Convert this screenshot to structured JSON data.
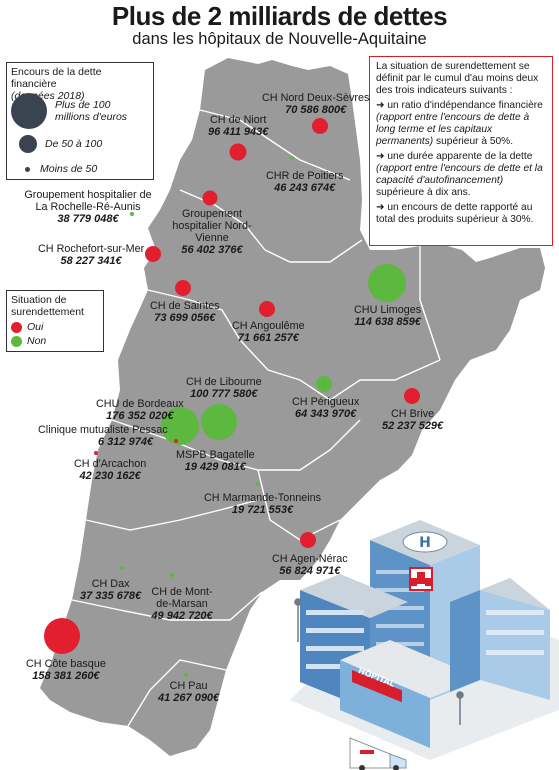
{
  "title": "Plus de 2 milliards de dettes",
  "subtitle": "dans les hôpitaux de Nouvelle-Aquitaine",
  "legend": {
    "title": "Encours de la dette financière",
    "subtitle": "(données 2018)",
    "sizes": [
      {
        "label": "Plus de 100 millions d'euros"
      },
      {
        "label": "De 50 à 100"
      },
      {
        "label": "Moins de 50"
      }
    ]
  },
  "status_legend": {
    "title": "Situation de surendettement",
    "yes": "Oui",
    "no": "Non",
    "yes_color": "#e21f2f",
    "no_color": "#5cb83f"
  },
  "info": {
    "intro": "La situation de surendettement se définit par le cumul d'au moins deux des trois indicateurs suivants :",
    "criteria": [
      {
        "lead": "un ratio d'indépendance financière",
        "detail": "(rapport entre l'encours de dette à long terme et les capitaux permanents)",
        "tail": "supérieur à 50%."
      },
      {
        "lead": "une durée apparente de la dette",
        "detail": "(rapport entre l'encours de dette et la capacité d'autofinancement)",
        "tail": "supérieure à dix ans."
      },
      {
        "lead": "un encours de dette rapporté au total des produits supérieur à 30%.",
        "detail": "",
        "tail": ""
      }
    ]
  },
  "hospitals": [
    {
      "name": "CH Nord Deux-Sèvres",
      "value": "70 586 800€",
      "status": "oui"
    },
    {
      "name": "CH de Niort",
      "value": "96 411 943€",
      "status": "oui"
    },
    {
      "name": "CHR de Poitiers",
      "value": "46 243 674€",
      "status": "oui"
    },
    {
      "name": "Groupement hospitalier de La Rochelle-Ré-Aunis",
      "value": "38 779 048€",
      "status": "non"
    },
    {
      "name": "Groupement hospitalier Nord-Vienne",
      "value": "56 402 376€",
      "status": "oui"
    },
    {
      "name": "CH Rochefort-sur-Mer",
      "value": "58 227 341€",
      "status": "oui"
    },
    {
      "name": "CHU Limoges",
      "value": "114 638 859€",
      "status": "non"
    },
    {
      "name": "CH de Saintes",
      "value": "73 699 056€",
      "status": "oui"
    },
    {
      "name": "CH Angoulême",
      "value": "71 661 257€",
      "status": "oui"
    },
    {
      "name": "CH de Libourne",
      "value": "100 777 580€",
      "status": "non"
    },
    {
      "name": "CH Périgueux",
      "value": "64 343 970€",
      "status": "non"
    },
    {
      "name": "CH Brive",
      "value": "52 237 529€",
      "status": "oui"
    },
    {
      "name": "CHU de Bordeaux",
      "value": "176 352 020€",
      "status": "non"
    },
    {
      "name": "Clinique mutualiste Pessac",
      "value": "6 312 974€",
      "status": "oui"
    },
    {
      "name": "MSPB Bagatelle",
      "value": "19 429 081€",
      "status": "non"
    },
    {
      "name": "CH d'Arcachon",
      "value": "42 230 162€",
      "status": "oui"
    },
    {
      "name": "CH Marmande-Tonneins",
      "value": "19 721 553€",
      "status": "non"
    },
    {
      "name": "CH Agen-Nérac",
      "value": "56 824 971€",
      "status": "oui"
    },
    {
      "name": "CH Dax",
      "value": "37 335 678€",
      "status": "non"
    },
    {
      "name": "CH de Mont-de-Marsan",
      "value": "49 942 720€",
      "status": "non"
    },
    {
      "name": "CH Côte basque",
      "value": "158 381 260€",
      "status": "oui"
    },
    {
      "name": "CH Pau",
      "value": "41 267 090€",
      "status": "non"
    }
  ],
  "building": {
    "sign": "HÔPITAL",
    "heli": "H"
  }
}
